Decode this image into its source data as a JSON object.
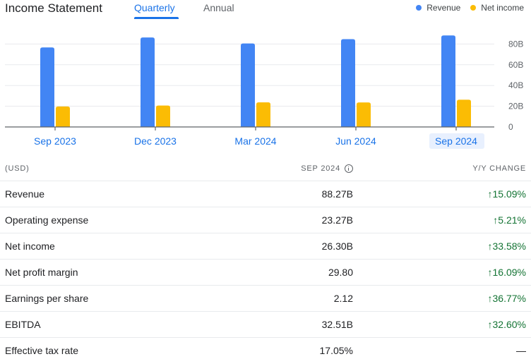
{
  "header": {
    "title": "Income Statement",
    "tabs": [
      {
        "label": "Quarterly",
        "active": true
      },
      {
        "label": "Annual",
        "active": false
      }
    ],
    "legend": [
      {
        "label": "Revenue",
        "color": "#4285f4"
      },
      {
        "label": "Net income",
        "color": "#fbbc04"
      }
    ]
  },
  "chart_data": {
    "type": "bar",
    "categories": [
      "Sep 2023",
      "Dec 2023",
      "Mar 2024",
      "Jun 2024",
      "Sep 2024"
    ],
    "selected_category": "Sep 2024",
    "series": [
      {
        "name": "Revenue",
        "color": "#4285f4",
        "values": [
          76.7,
          86.3,
          80.5,
          84.7,
          88.27
        ]
      },
      {
        "name": "Net income",
        "color": "#fbbc04",
        "values": [
          19.7,
          20.7,
          23.7,
          23.6,
          26.3
        ]
      }
    ],
    "y_ticks": [
      "0",
      "20B",
      "40B",
      "60B",
      "80B"
    ],
    "ylim": [
      0,
      100
    ],
    "y_tick_values": [
      0,
      20,
      40,
      60,
      80
    ],
    "grid": true,
    "legend_position": "top-right"
  },
  "table": {
    "header": {
      "label": "(USD)",
      "period": "SEP 2024",
      "change": "Y/Y CHANGE"
    },
    "rows": [
      {
        "label": "Revenue",
        "value": "88.27B",
        "change": "15.09%",
        "direction": "up"
      },
      {
        "label": "Operating expense",
        "value": "23.27B",
        "change": "5.21%",
        "direction": "up"
      },
      {
        "label": "Net income",
        "value": "26.30B",
        "change": "33.58%",
        "direction": "up"
      },
      {
        "label": "Net profit margin",
        "value": "29.80",
        "change": "16.09%",
        "direction": "up"
      },
      {
        "label": "Earnings per share",
        "value": "2.12",
        "change": "36.77%",
        "direction": "up"
      },
      {
        "label": "EBITDA",
        "value": "32.51B",
        "change": "32.60%",
        "direction": "up"
      },
      {
        "label": "Effective tax rate",
        "value": "17.05%",
        "change": "—",
        "direction": "none"
      }
    ]
  }
}
